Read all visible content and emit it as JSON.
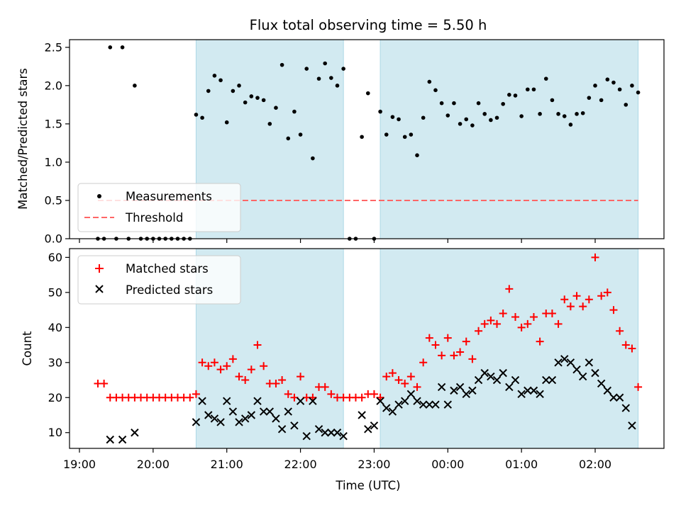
{
  "chart_data": [
    {
      "type": "scatter",
      "title": "Flux total observing time = 5.50 h",
      "xlabel": "",
      "ylabel": "Matched/Predicted stars",
      "ylim": [
        0,
        2.6
      ],
      "yticks": [
        "0.0",
        "0.5",
        "1.0",
        "1.5",
        "2.0",
        "2.5"
      ],
      "legend": {
        "position": "lower-left",
        "entries": [
          "Measurements",
          "Threshold"
        ]
      },
      "threshold": 0.5,
      "threshold_color": "#ff6666",
      "shaded_color": "#add8e6",
      "shaded_intervals": [
        [
          "20:35",
          "22:35"
        ],
        [
          "23:05",
          "02:35"
        ]
      ],
      "series": [
        {
          "name": "Measurements",
          "color": "#000000",
          "points": [
            [
              "19:15",
              0
            ],
            [
              "19:20",
              0
            ],
            [
              "19:25",
              2.5
            ],
            [
              "19:30",
              0
            ],
            [
              "19:35",
              2.5
            ],
            [
              "19:40",
              0
            ],
            [
              "19:45",
              2.0
            ],
            [
              "19:50",
              0
            ],
            [
              "19:55",
              0
            ],
            [
              "20:00",
              0
            ],
            [
              "20:05",
              0
            ],
            [
              "20:10",
              0
            ],
            [
              "20:15",
              0
            ],
            [
              "20:20",
              0
            ],
            [
              "20:25",
              0
            ],
            [
              "20:30",
              0
            ],
            [
              "20:35",
              1.62
            ],
            [
              "20:40",
              1.58
            ],
            [
              "20:45",
              1.93
            ],
            [
              "20:50",
              2.13
            ],
            [
              "20:55",
              2.07
            ],
            [
              "21:00",
              1.52
            ],
            [
              "21:05",
              1.93
            ],
            [
              "21:10",
              2.0
            ],
            [
              "21:15",
              1.78
            ],
            [
              "21:20",
              1.86
            ],
            [
              "21:25",
              1.84
            ],
            [
              "21:30",
              1.81
            ],
            [
              "21:35",
              1.5
            ],
            [
              "21:40",
              1.71
            ],
            [
              "21:45",
              2.27
            ],
            [
              "21:50",
              1.31
            ],
            [
              "21:55",
              1.66
            ],
            [
              "22:00",
              1.36
            ],
            [
              "22:05",
              2.22
            ],
            [
              "22:10",
              1.05
            ],
            [
              "22:15",
              2.09
            ],
            [
              "22:20",
              2.29
            ],
            [
              "22:25",
              2.1
            ],
            [
              "22:30",
              2.0
            ],
            [
              "22:35",
              2.22
            ],
            [
              "22:40",
              0
            ],
            [
              "22:45",
              0
            ],
            [
              "22:50",
              1.33
            ],
            [
              "22:55",
              1.9
            ],
            [
              "23:00",
              0
            ],
            [
              "23:05",
              1.66
            ],
            [
              "23:10",
              1.36
            ],
            [
              "23:15",
              1.59
            ],
            [
              "23:20",
              1.56
            ],
            [
              "23:25",
              1.33
            ],
            [
              "23:30",
              1.36
            ],
            [
              "23:35",
              1.09
            ],
            [
              "23:40",
              1.58
            ],
            [
              "23:45",
              2.05
            ],
            [
              "23:50",
              1.94
            ],
            [
              "23:55",
              1.77
            ],
            [
              "00:00",
              1.61
            ],
            [
              "00:05",
              1.77
            ],
            [
              "00:10",
              1.5
            ],
            [
              "00:15",
              1.56
            ],
            [
              "00:20",
              1.48
            ],
            [
              "00:25",
              1.77
            ],
            [
              "00:30",
              1.63
            ],
            [
              "00:35",
              1.55
            ],
            [
              "00:40",
              1.58
            ],
            [
              "00:45",
              1.76
            ],
            [
              "00:50",
              1.88
            ],
            [
              "00:55",
              1.87
            ],
            [
              "01:00",
              1.6
            ],
            [
              "01:05",
              1.95
            ],
            [
              "01:10",
              1.95
            ],
            [
              "01:15",
              1.63
            ],
            [
              "01:20",
              2.09
            ],
            [
              "01:25",
              1.81
            ],
            [
              "01:30",
              1.63
            ],
            [
              "01:35",
              1.6
            ],
            [
              "01:40",
              1.49
            ],
            [
              "01:45",
              1.63
            ],
            [
              "01:50",
              1.64
            ],
            [
              "01:55",
              1.84
            ],
            [
              "02:00",
              2.0
            ],
            [
              "02:05",
              1.81
            ],
            [
              "02:10",
              2.08
            ],
            [
              "02:15",
              2.04
            ],
            [
              "02:20",
              1.95
            ],
            [
              "02:25",
              1.75
            ],
            [
              "02:30",
              2.0
            ],
            [
              "02:35",
              1.91
            ]
          ]
        }
      ]
    },
    {
      "type": "scatter",
      "title": "",
      "xlabel": "Time (UTC)",
      "ylabel": "Count",
      "ylim": [
        5.5,
        62.5
      ],
      "yticks": [
        "10",
        "20",
        "30",
        "40",
        "50",
        "60"
      ],
      "xticks": [
        "19:00",
        "20:00",
        "21:00",
        "22:00",
        "23:00",
        "00:00",
        "01:00",
        "02:00"
      ],
      "legend": {
        "position": "upper-left",
        "entries": [
          "Matched stars",
          "Predicted stars"
        ]
      },
      "shaded_color": "#add8e6",
      "shaded_intervals": [
        [
          "20:35",
          "22:35"
        ],
        [
          "23:05",
          "02:35"
        ]
      ],
      "series": [
        {
          "name": "Matched stars",
          "marker": "plus",
          "color": "#ff0000",
          "points": [
            [
              "19:15",
              24
            ],
            [
              "19:20",
              24
            ],
            [
              "19:25",
              20
            ],
            [
              "19:30",
              20
            ],
            [
              "19:35",
              20
            ],
            [
              "19:40",
              20
            ],
            [
              "19:45",
              20
            ],
            [
              "19:50",
              20
            ],
            [
              "19:55",
              20
            ],
            [
              "20:00",
              20
            ],
            [
              "20:05",
              20
            ],
            [
              "20:10",
              20
            ],
            [
              "20:15",
              20
            ],
            [
              "20:20",
              20
            ],
            [
              "20:25",
              20
            ],
            [
              "20:30",
              20
            ],
            [
              "20:35",
              21
            ],
            [
              "20:40",
              30
            ],
            [
              "20:45",
              29
            ],
            [
              "20:50",
              30
            ],
            [
              "20:55",
              28
            ],
            [
              "21:00",
              29
            ],
            [
              "21:05",
              31
            ],
            [
              "21:10",
              26
            ],
            [
              "21:15",
              25
            ],
            [
              "21:20",
              28
            ],
            [
              "21:25",
              35
            ],
            [
              "21:30",
              29
            ],
            [
              "21:35",
              24
            ],
            [
              "21:40",
              24
            ],
            [
              "21:45",
              25
            ],
            [
              "21:50",
              21
            ],
            [
              "21:55",
              20
            ],
            [
              "22:00",
              26
            ],
            [
              "22:05",
              20
            ],
            [
              "22:10",
              20
            ],
            [
              "22:15",
              23
            ],
            [
              "22:20",
              23
            ],
            [
              "22:25",
              21
            ],
            [
              "22:30",
              20
            ],
            [
              "22:35",
              20
            ],
            [
              "22:40",
              20
            ],
            [
              "22:45",
              20
            ],
            [
              "22:50",
              20
            ],
            [
              "22:55",
              21
            ],
            [
              "23:00",
              21
            ],
            [
              "23:05",
              20
            ],
            [
              "23:10",
              26
            ],
            [
              "23:15",
              27
            ],
            [
              "23:20",
              25
            ],
            [
              "23:25",
              24
            ],
            [
              "23:30",
              26
            ],
            [
              "23:35",
              23
            ],
            [
              "23:40",
              30
            ],
            [
              "23:45",
              37
            ],
            [
              "23:50",
              35
            ],
            [
              "23:55",
              32
            ],
            [
              "00:00",
              37
            ],
            [
              "00:05",
              32
            ],
            [
              "00:10",
              33
            ],
            [
              "00:15",
              36
            ],
            [
              "00:20",
              31
            ],
            [
              "00:25",
              39
            ],
            [
              "00:30",
              41
            ],
            [
              "00:35",
              42
            ],
            [
              "00:40",
              41
            ],
            [
              "00:45",
              44
            ],
            [
              "00:50",
              51
            ],
            [
              "00:55",
              43
            ],
            [
              "01:00",
              40
            ],
            [
              "01:05",
              41
            ],
            [
              "01:10",
              43
            ],
            [
              "01:15",
              36
            ],
            [
              "01:20",
              44
            ],
            [
              "01:25",
              44
            ],
            [
              "01:30",
              41
            ],
            [
              "01:35",
              48
            ],
            [
              "01:40",
              46
            ],
            [
              "01:45",
              49
            ],
            [
              "01:50",
              46
            ],
            [
              "01:55",
              48
            ],
            [
              "02:00",
              60
            ],
            [
              "02:05",
              49
            ],
            [
              "02:10",
              50
            ],
            [
              "02:15",
              45
            ],
            [
              "02:20",
              39
            ],
            [
              "02:25",
              35
            ],
            [
              "02:30",
              34
            ],
            [
              "02:35",
              23
            ]
          ]
        },
        {
          "name": "Predicted stars",
          "marker": "x",
          "color": "#000000",
          "points": [
            [
              "19:25",
              8
            ],
            [
              "19:35",
              8
            ],
            [
              "19:45",
              10
            ],
            [
              "20:35",
              13
            ],
            [
              "20:40",
              19
            ],
            [
              "20:45",
              15
            ],
            [
              "20:50",
              14
            ],
            [
              "20:55",
              13
            ],
            [
              "21:00",
              19
            ],
            [
              "21:05",
              16
            ],
            [
              "21:10",
              13
            ],
            [
              "21:15",
              14
            ],
            [
              "21:20",
              15
            ],
            [
              "21:25",
              19
            ],
            [
              "21:30",
              16
            ],
            [
              "21:35",
              16
            ],
            [
              "21:40",
              14
            ],
            [
              "21:45",
              11
            ],
            [
              "21:50",
              16
            ],
            [
              "21:55",
              12
            ],
            [
              "22:00",
              19
            ],
            [
              "22:05",
              9
            ],
            [
              "22:10",
              19
            ],
            [
              "22:15",
              11
            ],
            [
              "22:20",
              10
            ],
            [
              "22:25",
              10
            ],
            [
              "22:30",
              10
            ],
            [
              "22:35",
              9
            ],
            [
              "22:50",
              15
            ],
            [
              "22:55",
              11
            ],
            [
              "23:00",
              12
            ],
            [
              "23:05",
              19
            ],
            [
              "23:10",
              17
            ],
            [
              "23:15",
              16
            ],
            [
              "23:20",
              18
            ],
            [
              "23:25",
              19
            ],
            [
              "23:30",
              21
            ],
            [
              "23:35",
              19
            ],
            [
              "23:40",
              18
            ],
            [
              "23:45",
              18
            ],
            [
              "23:50",
              18
            ],
            [
              "23:55",
              23
            ],
            [
              "00:00",
              18
            ],
            [
              "00:05",
              22
            ],
            [
              "00:10",
              23
            ],
            [
              "00:15",
              21
            ],
            [
              "00:20",
              22
            ],
            [
              "00:25",
              25
            ],
            [
              "00:30",
              27
            ],
            [
              "00:35",
              26
            ],
            [
              "00:40",
              25
            ],
            [
              "00:45",
              27
            ],
            [
              "00:50",
              23
            ],
            [
              "00:55",
              25
            ],
            [
              "01:00",
              21
            ],
            [
              "01:05",
              22
            ],
            [
              "01:10",
              22
            ],
            [
              "01:15",
              21
            ],
            [
              "01:20",
              25
            ],
            [
              "01:25",
              25
            ],
            [
              "01:30",
              30
            ],
            [
              "01:35",
              31
            ],
            [
              "01:40",
              30
            ],
            [
              "01:45",
              28
            ],
            [
              "01:50",
              26
            ],
            [
              "01:55",
              30
            ],
            [
              "02:00",
              27
            ],
            [
              "02:05",
              24
            ],
            [
              "02:10",
              22
            ],
            [
              "02:15",
              20
            ],
            [
              "02:20",
              20
            ],
            [
              "02:25",
              17
            ],
            [
              "02:30",
              12
            ]
          ]
        }
      ]
    }
  ]
}
